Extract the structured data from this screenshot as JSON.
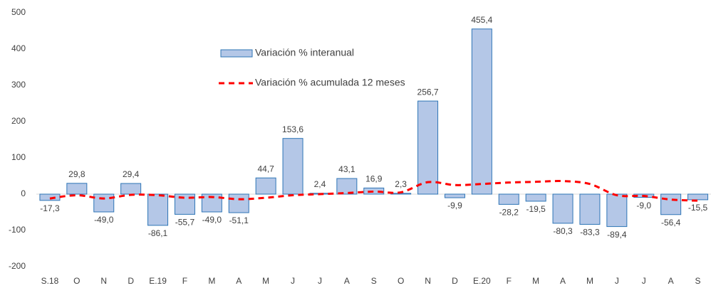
{
  "chart_data": {
    "type": "bar",
    "categories": [
      "S.18",
      "O",
      "N",
      "D",
      "E.19",
      "F",
      "M",
      "A",
      "M",
      "J",
      "J",
      "A",
      "S",
      "O",
      "N",
      "D",
      "E.20",
      "F",
      "M",
      "A",
      "M",
      "J",
      "J",
      "A",
      "S"
    ],
    "series": [
      {
        "name": "Variación % interanual",
        "type": "bar",
        "color": "#b4c7e7",
        "stroke": "#2e75b6",
        "values": [
          -17.3,
          29.8,
          -49.0,
          29.4,
          -86.1,
          -55.7,
          -49.0,
          -51.1,
          44.7,
          153.6,
          2.4,
          43.1,
          16.9,
          2.3,
          256.7,
          -9.9,
          455.4,
          -28.2,
          -19.5,
          -80.3,
          -83.3,
          -89.4,
          -9.0,
          -56.4,
          -15.5
        ],
        "value_labels": [
          "-17,3",
          "29,8",
          "-49,0",
          "29,4",
          "-86,1",
          "-55,7",
          "-49,0",
          "-51,1",
          "44,7",
          "153,6",
          "2,4",
          "43,1",
          "16,9",
          "2,3",
          "256,7",
          "-9,9",
          "455,4",
          "-28,2",
          "-19,5",
          "-80,3",
          "-83,3",
          "-89,4",
          "-9,0",
          "-56,4",
          "-15,5"
        ]
      },
      {
        "name": "Variación % acumulada 12 meses",
        "type": "line",
        "color": "#ff0000",
        "values": [
          -12,
          -3,
          -12,
          -2,
          -3,
          -10,
          -8,
          -14,
          -10,
          -3,
          0,
          3,
          7,
          5,
          33,
          25,
          28,
          32,
          34,
          36,
          28,
          -3,
          -5,
          -15,
          -18
        ]
      }
    ],
    "ylim": [
      -200,
      500
    ],
    "yticks": [
      -200,
      -100,
      0,
      100,
      200,
      300,
      400,
      500
    ],
    "grid": false
  }
}
